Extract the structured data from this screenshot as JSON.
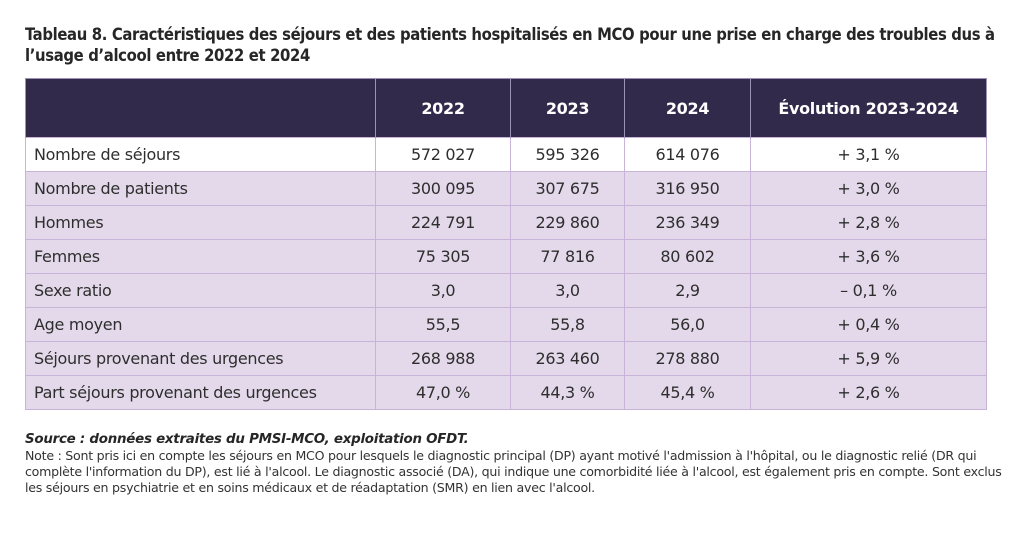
{
  "title": "Tableau 8. Caractéristiques des séjours et des patients hospitalisés en MCO pour une prise en charge des troubles dus à l’usage d’alcool entre 2022 et 2024",
  "colors": {
    "header_bg": "#312a4b",
    "header_text": "#ffffff",
    "row_tint": "#e3d9ea",
    "border": "#c8b4d8"
  },
  "table": {
    "headers": [
      "",
      "2022",
      "2023",
      "2024",
      "Évolution 2023-2024"
    ],
    "rows": [
      {
        "label": "Nombre de séjours",
        "v2022": "572 027",
        "v2023": "595 326",
        "v2024": "614 076",
        "evolution": "+ 3,1 %"
      },
      {
        "label": "Nombre de patients",
        "v2022": "300 095",
        "v2023": "307 675",
        "v2024": "316 950",
        "evolution": "+ 3,0 %"
      },
      {
        "label": "Hommes",
        "v2022": "224 791",
        "v2023": "229 860",
        "v2024": "236 349",
        "evolution": "+ 2,8 %"
      },
      {
        "label": "Femmes",
        "v2022": "75 305",
        "v2023": "77 816",
        "v2024": "80 602",
        "evolution": "+ 3,6 %"
      },
      {
        "label": "Sexe ratio",
        "v2022": "3,0",
        "v2023": "3,0",
        "v2024": "2,9",
        "evolution": "– 0,1 %"
      },
      {
        "label": "Age moyen",
        "v2022": "55,5",
        "v2023": "55,8",
        "v2024": "56,0",
        "evolution": "+ 0,4 %"
      },
      {
        "label": "Séjours provenant des urgences",
        "v2022": "268 988",
        "v2023": "263 460",
        "v2024": "278 880",
        "evolution": "+ 5,9 %"
      },
      {
        "label": "Part séjours provenant des urgences",
        "v2022": "47,0 %",
        "v2023": "44,3 %",
        "v2024": "45,4 %",
        "evolution": "+ 2,6 %"
      }
    ]
  },
  "footnote": {
    "source": "Source : données extraites du PMSI-MCO, exploitation OFDT.",
    "note": "Note : Sont pris ici en compte les séjours en MCO pour lesquels le diagnostic principal (DP) ayant motivé l'admission à l'hôpital, ou le diagnostic relié (DR qui complète l'information du DP), est lié à l'alcool. Le diagnostic associé (DA), qui indique une comorbidité liée à l'alcool, est également pris en compte. Sont exclus les séjours en psychiatrie et en soins médicaux et de réadaptation (SMR) en lien avec l'alcool."
  }
}
